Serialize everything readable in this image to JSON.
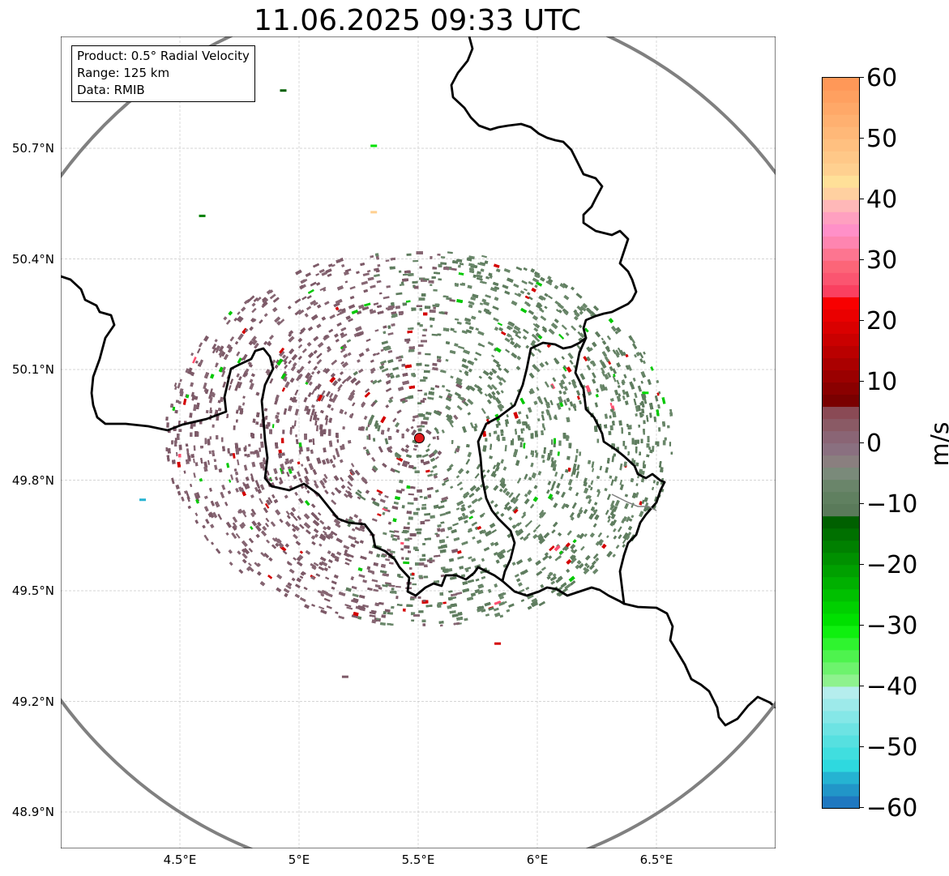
{
  "title": "11.06.2025 09:33 UTC",
  "info": {
    "product": "Product: 0.5° Radial Velocity",
    "range": "Range: 125 km",
    "data": "Data: RMIB"
  },
  "axes": {
    "lat_labels": [
      "50.7°N",
      "50.4°N",
      "50.1°N",
      "49.8°N",
      "49.5°N",
      "49.2°N",
      "48.9°N"
    ],
    "lon_labels": [
      "4.5°E",
      "5°E",
      "5.5°E",
      "6°E",
      "6.5°E"
    ],
    "lat_values": [
      50.7,
      50.4,
      50.1,
      49.8,
      49.5,
      49.2,
      48.9
    ],
    "lon_values": [
      4.5,
      5.0,
      5.5,
      6.0,
      6.5
    ],
    "extent": {
      "lon_min": 4.0,
      "lon_max": 7.0,
      "lat_min": 48.8,
      "lat_max": 51.0
    }
  },
  "radar": {
    "site_lon": 5.505,
    "site_lat": 49.914,
    "range_km": 125,
    "range_ring_color": "#808080",
    "site_marker_color": "#e0191c"
  },
  "colorbar": {
    "label": "m/s",
    "vmin": -60,
    "vmax": 60,
    "tick_labels": [
      "60",
      "50",
      "40",
      "30",
      "20",
      "10",
      "0",
      "−10",
      "−20",
      "−30",
      "−40",
      "−50",
      "−60"
    ],
    "tick_values": [
      60,
      50,
      40,
      30,
      20,
      10,
      0,
      -10,
      -20,
      -30,
      -40,
      -50,
      -60
    ],
    "colors_bottom_to_top": [
      "#1f78c0",
      "#2196c8",
      "#25b3d2",
      "#2ed9df",
      "#40dedf",
      "#56e0e0",
      "#6de3e3",
      "#85e7e7",
      "#9deaea",
      "#b5eded",
      "#8ef28e",
      "#6df36d",
      "#4ef34e",
      "#2ff42f",
      "#0ff00f",
      "#00e000",
      "#00d000",
      "#00c000",
      "#00b000",
      "#00a000",
      "#009000",
      "#008000",
      "#007000",
      "#006000",
      "#5a7a5a",
      "#608060",
      "#6a856a",
      "#7a8a7a",
      "#8a7f7f",
      "#8a7080",
      "#8a6575",
      "#8a5a65",
      "#8a4a55",
      "#7a0000",
      "#8a0000",
      "#9a0000",
      "#aa0000",
      "#ba0000",
      "#ca0000",
      "#da0000",
      "#ea0000",
      "#f80000",
      "#fa4060",
      "#fb5570",
      "#fc6578",
      "#fd7590",
      "#fe85b0",
      "#ff90c8",
      "#ffa0c0",
      "#ffb8b8",
      "#ffd0a0",
      "#ffe098",
      "#ffd090",
      "#ffc888",
      "#ffc080",
      "#ffb878",
      "#ffb070",
      "#ffa868",
      "#ffa060",
      "#ff9858"
    ]
  }
}
